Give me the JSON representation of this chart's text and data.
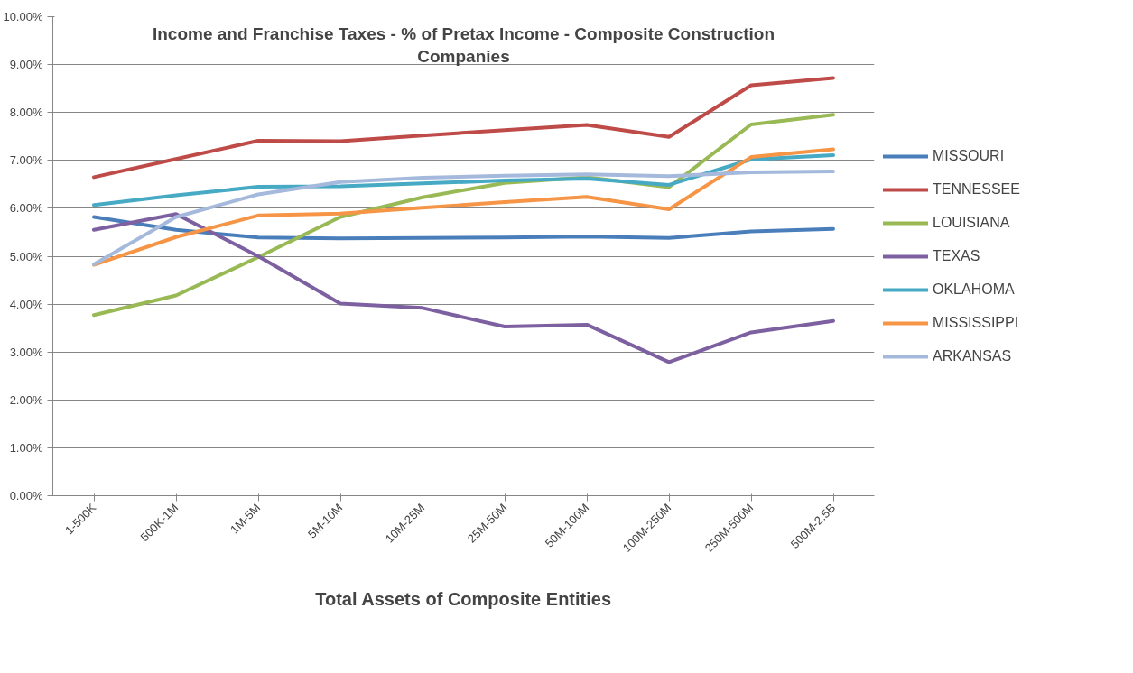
{
  "chart_data": {
    "type": "line",
    "title": "Income and Franchise Taxes - % of Pretax Income - Composite Construction Companies",
    "xlabel": "Total Assets of Composite Entities",
    "categories": [
      "1-500K",
      "500K-1M",
      "1M-5M",
      "5M-10M",
      "10M-25M",
      "25M-50M",
      "50M-100M",
      "100M-250M",
      "250M-500M",
      "500M-2.5B"
    ],
    "series": [
      {
        "name": "MISSOURI",
        "color": "#4a7ebb",
        "values": [
          5.82,
          5.55,
          5.39,
          5.37,
          5.38,
          5.39,
          5.41,
          5.38,
          5.52,
          5.57
        ]
      },
      {
        "name": "TENNESSEE",
        "color": "#be4b48",
        "values": [
          6.65,
          7.03,
          7.41,
          7.4,
          7.52,
          7.63,
          7.74,
          7.49,
          8.57,
          8.72
        ]
      },
      {
        "name": "LOUISIANA",
        "color": "#98b954",
        "values": [
          3.77,
          4.18,
          4.98,
          5.82,
          6.23,
          6.53,
          6.65,
          6.44,
          7.75,
          7.95
        ]
      },
      {
        "name": "TEXAS",
        "color": "#7d60a0",
        "values": [
          5.55,
          5.88,
          5.0,
          4.01,
          3.92,
          3.53,
          3.57,
          2.79,
          3.41,
          3.65
        ]
      },
      {
        "name": "OKLAHOMA",
        "color": "#46aac5",
        "values": [
          6.07,
          6.27,
          6.45,
          6.46,
          6.52,
          6.58,
          6.62,
          6.49,
          7.02,
          7.11
        ]
      },
      {
        "name": "MISSISSIPPI",
        "color": "#f69546",
        "values": [
          4.82,
          5.4,
          5.85,
          5.89,
          6.01,
          6.13,
          6.24,
          5.98,
          7.07,
          7.23
        ]
      },
      {
        "name": "ARKANSAS",
        "color": "#a5b9dc",
        "values": [
          4.83,
          5.82,
          6.29,
          6.55,
          6.64,
          6.68,
          6.71,
          6.67,
          6.75,
          6.77
        ]
      }
    ],
    "ylim": [
      0,
      10
    ],
    "yticks": [
      {
        "value": 0,
        "label": "0.00%"
      },
      {
        "value": 1,
        "label": "1.00%"
      },
      {
        "value": 2,
        "label": "2.00%"
      },
      {
        "value": 3,
        "label": "3.00%"
      },
      {
        "value": 4,
        "label": "4.00%"
      },
      {
        "value": 5,
        "label": "5.00%"
      },
      {
        "value": 6,
        "label": "6.00%"
      },
      {
        "value": 7,
        "label": "7.00%"
      },
      {
        "value": 8,
        "label": "8.00%"
      },
      {
        "value": 9,
        "label": "9.00%"
      },
      {
        "value": 10,
        "label": "10.00%"
      }
    ],
    "grid": "y",
    "legend": "right",
    "marker": "none",
    "line_style": "solid"
  }
}
